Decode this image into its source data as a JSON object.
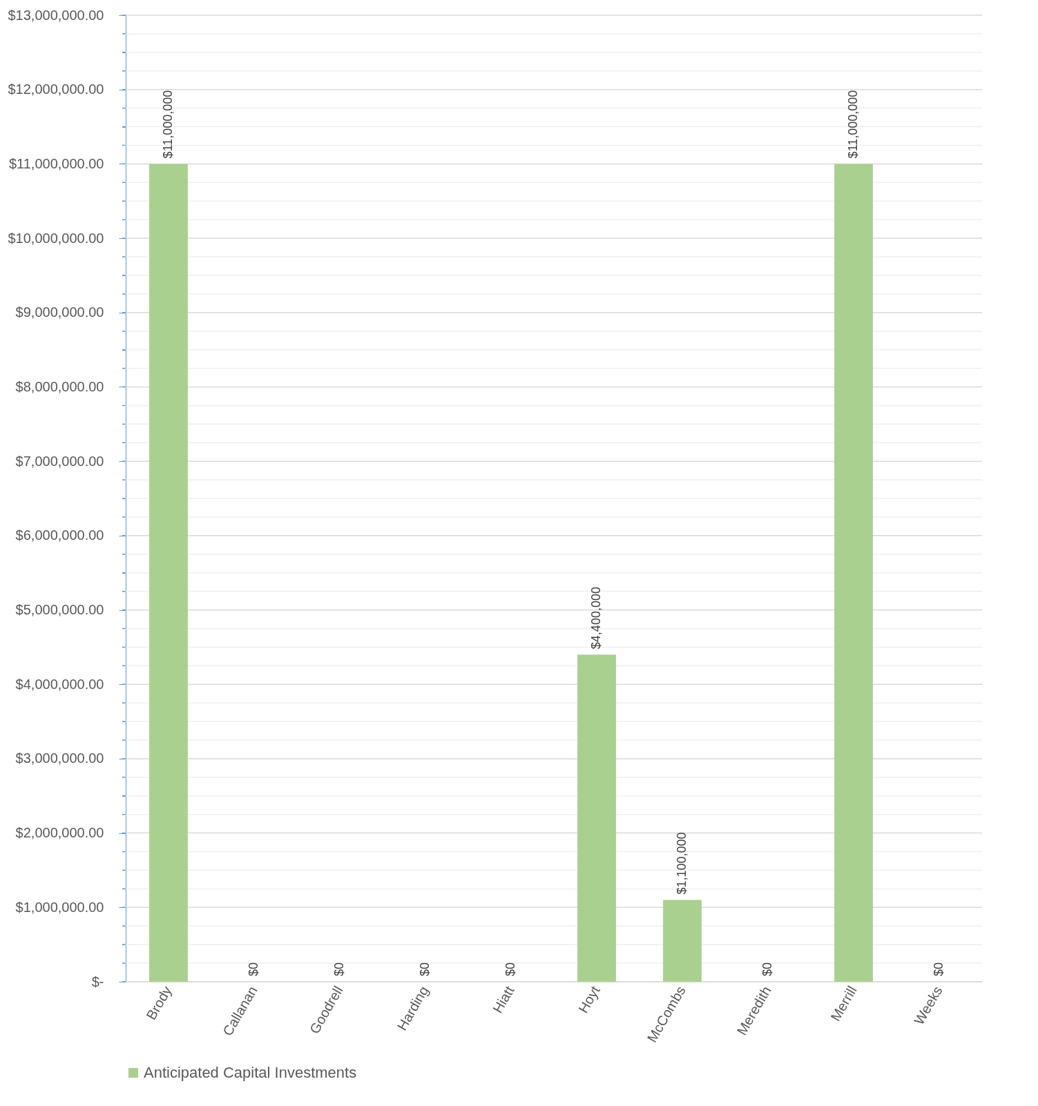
{
  "chart_data": {
    "type": "bar",
    "categories": [
      "Brody",
      "Callanan",
      "Goodrell",
      "Harding",
      "Hiatt",
      "Hoyt",
      "McCombs",
      "Meredith",
      "Merrill",
      "Weeks"
    ],
    "series": [
      {
        "name": "Anticipated Capital Investments",
        "color": "#a9d08e",
        "values": [
          11000000,
          0,
          0,
          0,
          0,
          4400000,
          1100000,
          0,
          11000000,
          0
        ],
        "value_labels": [
          "$11,000,000",
          "$0",
          "$0",
          "$0",
          "$0",
          "$4,400,000",
          "$1,100,000",
          "$0",
          "$11,000,000",
          "$0"
        ]
      }
    ],
    "ylim": [
      0,
      13000000
    ],
    "yticks": [
      {
        "value": 0,
        "label": "$-"
      },
      {
        "value": 250000,
        "label": null
      },
      {
        "value": 500000,
        "label": null
      },
      {
        "value": 750000,
        "label": null
      },
      {
        "value": 1000000,
        "label": "$1,000,000.00"
      },
      {
        "value": 1250000,
        "label": null
      },
      {
        "value": 1500000,
        "label": null
      },
      {
        "value": 1750000,
        "label": null
      },
      {
        "value": 2000000,
        "label": "$2,000,000.00"
      },
      {
        "value": 2250000,
        "label": null
      },
      {
        "value": 2500000,
        "label": null
      },
      {
        "value": 2750000,
        "label": null
      },
      {
        "value": 3000000,
        "label": "$3,000,000.00"
      },
      {
        "value": 3250000,
        "label": null
      },
      {
        "value": 3500000,
        "label": null
      },
      {
        "value": 3750000,
        "label": null
      },
      {
        "value": 4000000,
        "label": "$4,000,000.00"
      },
      {
        "value": 4250000,
        "label": null
      },
      {
        "value": 4500000,
        "label": null
      },
      {
        "value": 4750000,
        "label": null
      },
      {
        "value": 5000000,
        "label": "$5,000,000.00"
      },
      {
        "value": 5250000,
        "label": null
      },
      {
        "value": 5500000,
        "label": null
      },
      {
        "value": 5750000,
        "label": null
      },
      {
        "value": 6000000,
        "label": "$6,000,000.00"
      },
      {
        "value": 6250000,
        "label": null
      },
      {
        "value": 6500000,
        "label": null
      },
      {
        "value": 6750000,
        "label": null
      },
      {
        "value": 7000000,
        "label": "$7,000,000.00"
      },
      {
        "value": 7250000,
        "label": null
      },
      {
        "value": 7500000,
        "label": null
      },
      {
        "value": 7750000,
        "label": null
      },
      {
        "value": 8000000,
        "label": "$8,000,000.00"
      },
      {
        "value": 8250000,
        "label": null
      },
      {
        "value": 8500000,
        "label": null
      },
      {
        "value": 8750000,
        "label": null
      },
      {
        "value": 9000000,
        "label": "$9,000,000.00"
      },
      {
        "value": 9250000,
        "label": null
      },
      {
        "value": 9500000,
        "label": null
      },
      {
        "value": 9750000,
        "label": null
      },
      {
        "value": 10000000,
        "label": "$10,000,000.00"
      },
      {
        "value": 10250000,
        "label": null
      },
      {
        "value": 10500000,
        "label": null
      },
      {
        "value": 10750000,
        "label": null
      },
      {
        "value": 11000000,
        "label": "$11,000,000.00"
      },
      {
        "value": 11250000,
        "label": null
      },
      {
        "value": 11500000,
        "label": null
      },
      {
        "value": 11750000,
        "label": null
      },
      {
        "value": 12000000,
        "label": "$12,000,000.00"
      },
      {
        "value": 12250000,
        "label": null
      },
      {
        "value": 12500000,
        "label": null
      },
      {
        "value": 12750000,
        "label": null
      },
      {
        "value": 13000000,
        "label": "$13,000,000.00"
      }
    ],
    "grid": true,
    "legend": "bottom"
  }
}
